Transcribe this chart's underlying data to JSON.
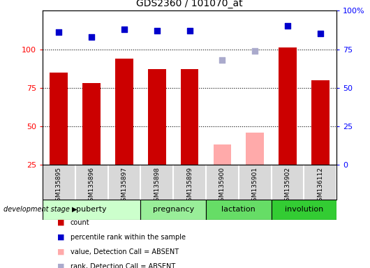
{
  "title": "GDS2360 / 101070_at",
  "samples": [
    "GSM135895",
    "GSM135896",
    "GSM135897",
    "GSM135898",
    "GSM135899",
    "GSM135900",
    "GSM135901",
    "GSM135902",
    "GSM136112"
  ],
  "count_values": [
    85,
    78,
    94,
    87,
    87,
    null,
    null,
    101,
    80
  ],
  "count_absent_values": [
    null,
    null,
    null,
    null,
    null,
    38,
    46,
    null,
    null
  ],
  "rank_values": [
    86,
    83,
    88,
    87,
    87,
    null,
    null,
    90,
    85
  ],
  "rank_absent_values": [
    null,
    null,
    null,
    null,
    null,
    68,
    74,
    null,
    null
  ],
  "ylim_left": [
    25,
    125
  ],
  "ylim_right": [
    0,
    100
  ],
  "yticks_left": [
    25,
    50,
    75,
    100
  ],
  "ytick_labels_left": [
    "25",
    "50",
    "75",
    "100"
  ],
  "yticks_right": [
    0,
    25,
    50,
    75,
    100
  ],
  "ytick_labels_right": [
    "0",
    "25",
    "50",
    "75",
    "100%"
  ],
  "hgrid_vals": [
    50,
    75,
    100
  ],
  "groups": [
    {
      "label": "puberty",
      "start": 0,
      "end": 3,
      "color": "#ccffcc"
    },
    {
      "label": "pregnancy",
      "start": 3,
      "end": 5,
      "color": "#99ee99"
    },
    {
      "label": "lactation",
      "start": 5,
      "end": 7,
      "color": "#66dd66"
    },
    {
      "label": "involution",
      "start": 7,
      "end": 9,
      "color": "#33cc33"
    }
  ],
  "bar_color": "#cc0000",
  "bar_absent_color": "#ffaaaa",
  "rank_color": "#0000cc",
  "rank_absent_color": "#aaaacc",
  "sample_bg_color": "#d8d8d8",
  "bar_width": 0.55,
  "rank_marker_size": 28,
  "legend_items": [
    {
      "label": "count",
      "color": "#cc0000"
    },
    {
      "label": "percentile rank within the sample",
      "color": "#0000cc"
    },
    {
      "label": "value, Detection Call = ABSENT",
      "color": "#ffaaaa"
    },
    {
      "label": "rank, Detection Call = ABSENT",
      "color": "#aaaacc"
    }
  ],
  "dev_stage_label": "development stage"
}
